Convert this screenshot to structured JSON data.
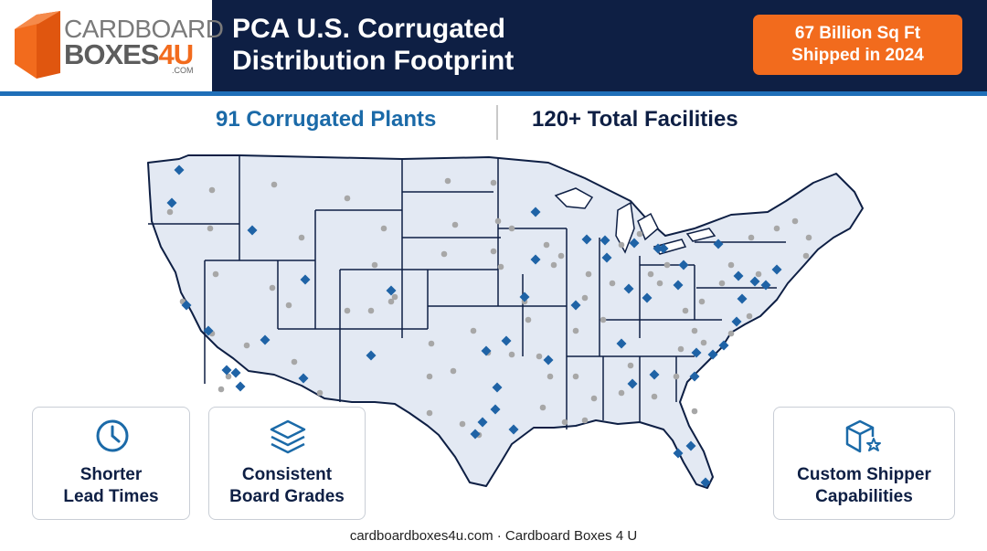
{
  "logo": {
    "line1": "CARDBOARD",
    "line2_main": "BOXES",
    "line2_accent": "4U",
    "com": ".COM"
  },
  "header": {
    "title": "PCA U.S. Corrugated\nDistribution Footprint"
  },
  "stat_badge": "67 Billion Sq Ft\nShipped in 2024",
  "subheads": {
    "plants": "91 Corrugated Plants",
    "facilities": "120+ Total Facilities"
  },
  "cards": [
    {
      "label": "Shorter\nLead Times",
      "icon": "clock-icon"
    },
    {
      "label": "Consistent\nBoard Grades",
      "icon": "layers-icon"
    },
    {
      "label": "Custom Shipper\nCapabilities",
      "icon": "box-star-icon"
    }
  ],
  "footer": "cardboardboxes4u.com · Cardboard Boxes 4 U",
  "colors": {
    "navy": "#0e1f44",
    "brand_blue": "#1b6aa8",
    "orange": "#f26b1d",
    "map_fill": "#e3e9f3",
    "plant_marker": "#1f63a6",
    "facility_marker": "#a7a7a7"
  },
  "map_markers": {
    "plant": "diamond",
    "facility": "circle"
  }
}
